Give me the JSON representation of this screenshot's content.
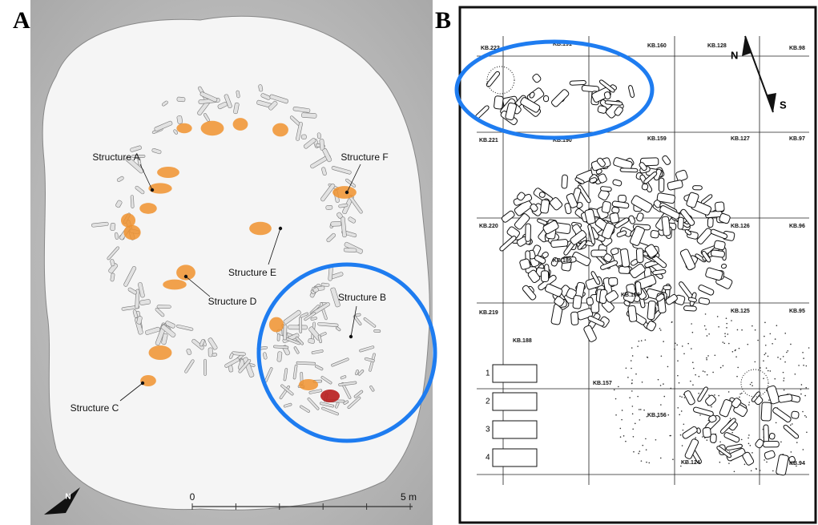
{
  "panel_a": {
    "label": "A",
    "structures": [
      "Structure A",
      "Structure F",
      "Structure E",
      "Structure D",
      "Structure B",
      "Structure C"
    ],
    "scale": {
      "start": "0",
      "end": "5 m"
    },
    "north": "N"
  },
  "panel_b": {
    "label": "B",
    "grid_labels": [
      "KB.222",
      "KB.191",
      "KB.160",
      "KB.128",
      "KB.98",
      "KB.221",
      "KB.190",
      "KB.159",
      "KB.127",
      "KB.97",
      "KB.220",
      "KB.189",
      "KB.158",
      "KB.126",
      "KB.96",
      "KB.219",
      "KB.188",
      "KB.157",
      "KB.125",
      "KB.95",
      "KB.156",
      "KB.124",
      "KB.94"
    ],
    "compass": {
      "north": "N",
      "south": "S"
    },
    "legend": [
      "1",
      "2",
      "3",
      "4"
    ]
  }
}
